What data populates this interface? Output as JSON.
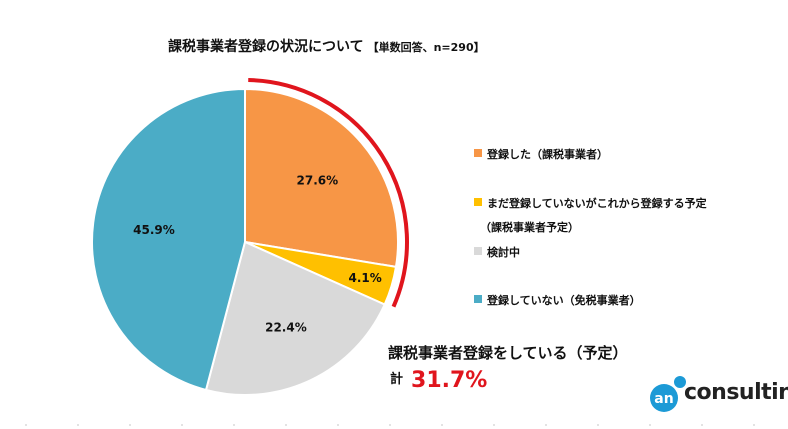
{
  "chart_data": {
    "type": "pie",
    "title": "課税事業者登録の状況について",
    "subtitle": "【単数回答、n=290】",
    "slices": [
      {
        "label": "登録した（課税事業者）",
        "value": 27.6,
        "value_label": "27.6%",
        "color": "#f79646"
      },
      {
        "label": "まだ登録していないがこれから登録する予定",
        "label_sub": "（課税事業者予定）",
        "value": 4.1,
        "value_label": "4.1%",
        "color": "#ffc000"
      },
      {
        "label": "検討中",
        "value": 22.4,
        "value_label": "22.4%",
        "color": "#d9d9d9"
      },
      {
        "label": "登録していない（免税事業者）",
        "value": 45.9,
        "value_label": "45.9%",
        "color": "#4bacc6"
      }
    ],
    "highlight": {
      "text": "課税事業者登録をしている（予定）",
      "total_label": "計",
      "total_value": "31.7%",
      "color": "#e0151d"
    }
  },
  "logo": {
    "mark": "an",
    "text": "consulting",
    "color": "#1c9ad6"
  }
}
